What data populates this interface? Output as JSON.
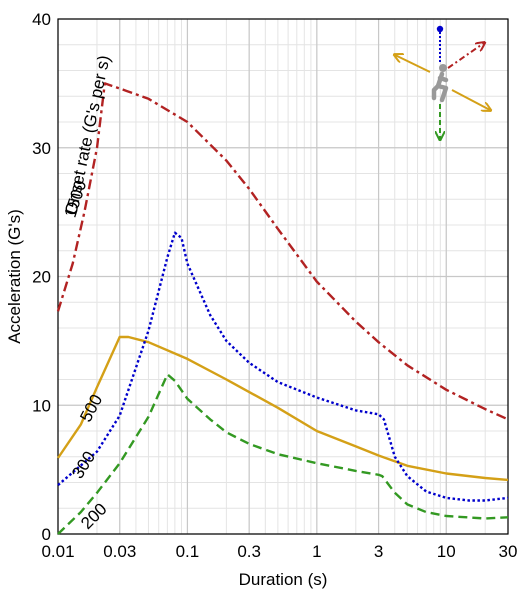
{
  "chart_data": {
    "type": "line",
    "xscale": "log",
    "xlim": [
      0.01,
      30
    ],
    "ylim": [
      0,
      40
    ],
    "xlabel": "Duration (s)",
    "ylabel": "Acceleration (G's)",
    "xticks": [
      {
        "value": 0.01,
        "label": "0.01"
      },
      {
        "value": 0.03,
        "label": "0.03"
      },
      {
        "value": 0.1,
        "label": "0.1"
      },
      {
        "value": 0.3,
        "label": "0.3"
      },
      {
        "value": 1,
        "label": "1"
      },
      {
        "value": 3,
        "label": "3"
      },
      {
        "value": 10,
        "label": "10"
      },
      {
        "value": 30,
        "label": "30"
      }
    ],
    "yticks": [
      {
        "value": 0,
        "label": "0"
      },
      {
        "value": 10,
        "label": "10"
      },
      {
        "value": 20,
        "label": "20"
      },
      {
        "value": 30,
        "label": "30"
      },
      {
        "value": 40,
        "label": "40"
      }
    ],
    "grid": true,
    "annotation": "Onset rate (G's per s)",
    "series": [
      {
        "name": "1500",
        "color": "#b22222",
        "style": "dashdot",
        "points": [
          [
            0.01,
            17.3
          ],
          [
            0.013,
            21
          ],
          [
            0.016,
            25
          ],
          [
            0.02,
            30
          ],
          [
            0.023,
            35
          ],
          [
            0.03,
            34.6
          ],
          [
            0.05,
            33.8
          ],
          [
            0.1,
            32
          ],
          [
            0.2,
            29
          ],
          [
            0.3,
            26.8
          ],
          [
            0.5,
            23.7
          ],
          [
            1,
            19.6
          ],
          [
            2,
            16.5
          ],
          [
            3,
            14.9
          ],
          [
            5,
            13.1
          ],
          [
            10,
            11.2
          ],
          [
            20,
            9.7
          ],
          [
            30,
            8.9
          ]
        ]
      },
      {
        "name": "500",
        "color": "#d4a017",
        "style": "solid",
        "points": [
          [
            0.01,
            5.9
          ],
          [
            0.015,
            8.5
          ],
          [
            0.02,
            11.4
          ],
          [
            0.03,
            15.3
          ],
          [
            0.035,
            15.3
          ],
          [
            0.05,
            14.9
          ],
          [
            0.1,
            13.6
          ],
          [
            0.2,
            12
          ],
          [
            0.5,
            9.8
          ],
          [
            1,
            8
          ],
          [
            2,
            6.8
          ],
          [
            3,
            6.1
          ],
          [
            5,
            5.3
          ],
          [
            10,
            4.7
          ],
          [
            20,
            4.35
          ],
          [
            30,
            4.2
          ]
        ]
      },
      {
        "name": "300",
        "color": "#0000cc",
        "style": "dotted",
        "points": [
          [
            0.01,
            3.8
          ],
          [
            0.02,
            6.4
          ],
          [
            0.03,
            9.2
          ],
          [
            0.05,
            15.8
          ],
          [
            0.07,
            21.5
          ],
          [
            0.08,
            23.4
          ],
          [
            0.09,
            23
          ],
          [
            0.1,
            21
          ],
          [
            0.15,
            17
          ],
          [
            0.2,
            15
          ],
          [
            0.3,
            13.3
          ],
          [
            0.5,
            11.8
          ],
          [
            1,
            10.6
          ],
          [
            2,
            9.6
          ],
          [
            3,
            9.3
          ],
          [
            3.3,
            8.9
          ],
          [
            4,
            6
          ],
          [
            5,
            4.5
          ],
          [
            7,
            3.3
          ],
          [
            10,
            2.8
          ],
          [
            15,
            2.6
          ],
          [
            20,
            2.6
          ],
          [
            30,
            2.8
          ]
        ]
      },
      {
        "name": "200",
        "color": "#339922",
        "style": "dashed",
        "points": [
          [
            0.01,
            0
          ],
          [
            0.015,
            1.7
          ],
          [
            0.02,
            3.2
          ],
          [
            0.03,
            5.5
          ],
          [
            0.05,
            9.1
          ],
          [
            0.07,
            12.4
          ],
          [
            0.08,
            11.9
          ],
          [
            0.1,
            10.5
          ],
          [
            0.15,
            8.9
          ],
          [
            0.2,
            7.9
          ],
          [
            0.3,
            7
          ],
          [
            0.5,
            6.2
          ],
          [
            1,
            5.5
          ],
          [
            2,
            4.9
          ],
          [
            3,
            4.6
          ],
          [
            3.2,
            4.5
          ],
          [
            4,
            3.2
          ],
          [
            5,
            2.3
          ],
          [
            7,
            1.7
          ],
          [
            10,
            1.4
          ],
          [
            20,
            1.2
          ],
          [
            30,
            1.3
          ]
        ]
      }
    ],
    "series_labels": [
      {
        "text": "1500",
        "x": 0.0135,
        "y": 24.5,
        "angle": -72
      },
      {
        "text": "500",
        "x": 0.0175,
        "y": 8.6,
        "angle": -62
      },
      {
        "text": "300",
        "x": 0.015,
        "y": 4.2,
        "angle": -58
      },
      {
        "text": "200",
        "x": 0.017,
        "y": 0.3,
        "angle": -45
      }
    ],
    "inset_icon": "seated-occupant-with-acceleration-direction-arrows"
  }
}
